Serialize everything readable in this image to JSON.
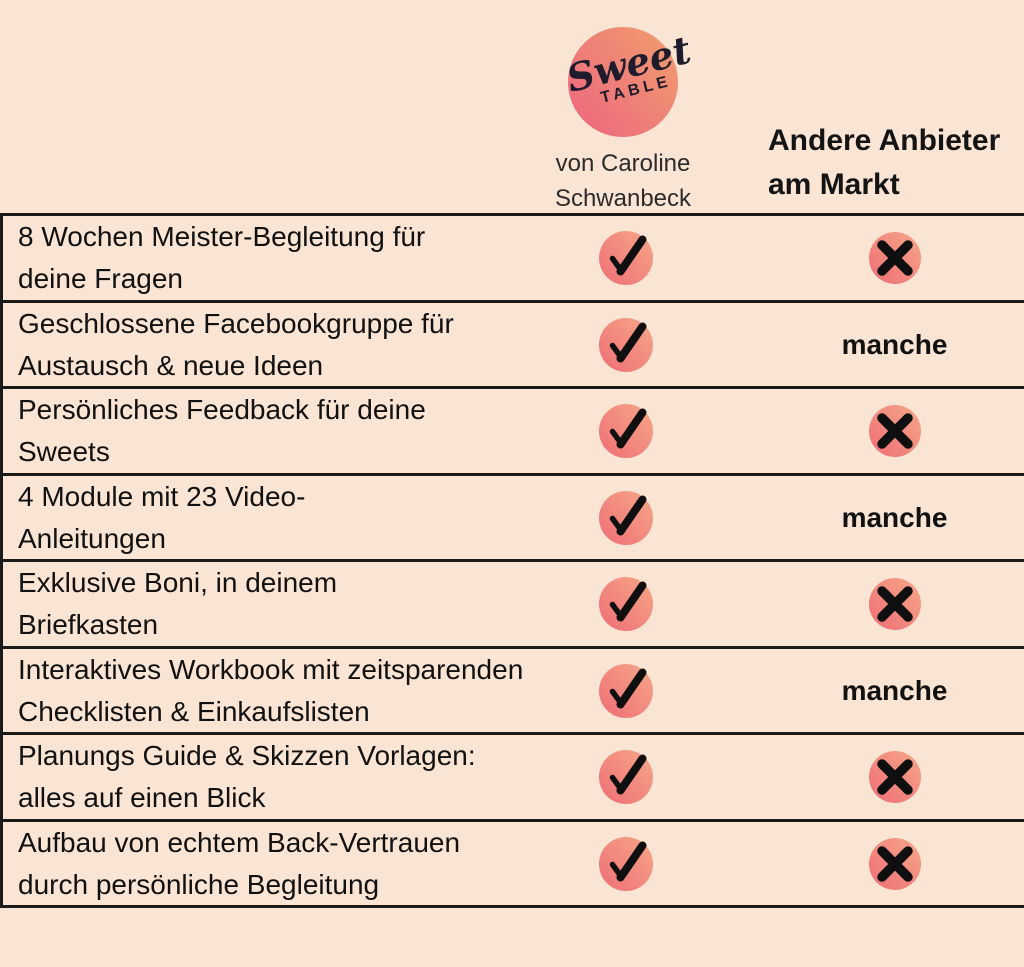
{
  "colors": {
    "background": "#fae4d4",
    "line": "#1a1a1a",
    "text": "#111111",
    "icon_circle_from": "#ef6d76",
    "icon_circle_to": "#f6a887",
    "logo_circle_from": "#ee6a7e",
    "logo_circle_to": "#f09c6e",
    "glyph": "#0f0f0f"
  },
  "header": {
    "logo": {
      "line1": "Sweet",
      "line2": "TABLE"
    },
    "left_col": {
      "line1": "von Caroline",
      "line2": "Schwanbeck"
    },
    "right_col": {
      "line1": "Andere Anbieter",
      "line2": "am Markt"
    }
  },
  "table": {
    "rows": [
      {
        "lines": [
          "8 Wochen Meister-Begleitung für",
          "deine Fragen"
        ],
        "sweet_table": "check",
        "others": "cross"
      },
      {
        "lines": [
          "Geschlossene Facebookgruppe für",
          "Austausch & neue Ideen"
        ],
        "sweet_table": "check",
        "others": "manche"
      },
      {
        "lines": [
          "Persönliches Feedback für deine",
          "Sweets"
        ],
        "sweet_table": "check",
        "others": "cross"
      },
      {
        "lines": [
          "4 Module mit 23 Video-",
          "Anleitungen"
        ],
        "sweet_table": "check",
        "others": "manche"
      },
      {
        "lines": [
          "Exklusive Boni, in deinem",
          "Briefkasten"
        ],
        "sweet_table": "check",
        "others": "cross"
      },
      {
        "lines": [
          "Interaktives Workbook mit zeitsparenden",
          "Checklisten & Einkaufslisten"
        ],
        "sweet_table": "check",
        "others": "manche"
      },
      {
        "lines": [
          "Planungs Guide & Skizzen Vorlagen:",
          "alles auf einen Blick"
        ],
        "sweet_table": "check",
        "others": "cross"
      },
      {
        "lines": [
          "Aufbau von echtem Back-Vertrauen",
          "durch persönliche Begleitung"
        ],
        "sweet_table": "check",
        "others": "cross"
      }
    ]
  }
}
